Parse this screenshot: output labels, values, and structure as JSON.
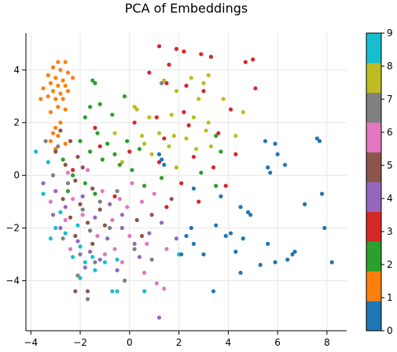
{
  "chart_data": {
    "type": "scatter",
    "title": "PCA of Embeddings",
    "xlabel": "",
    "ylabel": "",
    "xlim": [
      -4.2,
      8.8
    ],
    "ylim": [
      -5.9,
      5.4
    ],
    "x_ticks": [
      -4,
      -2,
      0,
      2,
      4,
      6,
      8
    ],
    "y_ticks": [
      -4,
      -2,
      0,
      2,
      4
    ],
    "grid": true,
    "colorbar": {
      "cmap": "tab10",
      "range": [
        0,
        9
      ],
      "ticks": [
        0,
        1,
        2,
        3,
        4,
        5,
        6,
        7,
        8,
        9
      ],
      "colors": [
        "#1f77b4",
        "#ff7f0e",
        "#2ca02c",
        "#d62728",
        "#9467bd",
        "#8c564b",
        "#e377c2",
        "#7f7f7f",
        "#bcbd22",
        "#17becf"
      ]
    },
    "points": [
      {
        "x": -2.9,
        "y": 4.3,
        "c": 1
      },
      {
        "x": -2.6,
        "y": 4.3,
        "c": 1
      },
      {
        "x": -3.1,
        "y": 4.1,
        "c": 1
      },
      {
        "x": -2.8,
        "y": 4.0,
        "c": 1
      },
      {
        "x": -3.3,
        "y": 3.8,
        "c": 1
      },
      {
        "x": -2.5,
        "y": 3.9,
        "c": 1
      },
      {
        "x": -3.0,
        "y": 3.7,
        "c": 1
      },
      {
        "x": -2.7,
        "y": 3.6,
        "c": 1
      },
      {
        "x": -2.3,
        "y": 3.7,
        "c": 1
      },
      {
        "x": -3.2,
        "y": 3.5,
        "c": 1
      },
      {
        "x": -2.9,
        "y": 3.4,
        "c": 1
      },
      {
        "x": -2.6,
        "y": 3.4,
        "c": 1
      },
      {
        "x": -3.5,
        "y": 3.3,
        "c": 1
      },
      {
        "x": -3.1,
        "y": 3.2,
        "c": 1
      },
      {
        "x": -2.8,
        "y": 3.1,
        "c": 1
      },
      {
        "x": -2.5,
        "y": 3.2,
        "c": 1
      },
      {
        "x": -3.3,
        "y": 3.0,
        "c": 1
      },
      {
        "x": -3.0,
        "y": 2.9,
        "c": 1
      },
      {
        "x": -2.7,
        "y": 2.9,
        "c": 1
      },
      {
        "x": -3.6,
        "y": 2.9,
        "c": 1
      },
      {
        "x": -2.9,
        "y": 2.6,
        "c": 1
      },
      {
        "x": -2.6,
        "y": 2.5,
        "c": 1
      },
      {
        "x": -3.2,
        "y": 2.4,
        "c": 1
      },
      {
        "x": -2.8,
        "y": 2.0,
        "c": 1
      },
      {
        "x": -3.0,
        "y": 1.8,
        "c": 1
      },
      {
        "x": -3.1,
        "y": 1.6,
        "c": 1
      },
      {
        "x": -2.9,
        "y": 1.5,
        "c": 1
      },
      {
        "x": -2.6,
        "y": 1.2,
        "c": 1
      },
      {
        "x": -3.2,
        "y": 1.3,
        "c": 1
      },
      {
        "x": -3.0,
        "y": 1.0,
        "c": 1
      },
      {
        "x": 1.2,
        "y": 4.9,
        "c": 3
      },
      {
        "x": 1.9,
        "y": 4.8,
        "c": 3
      },
      {
        "x": 2.2,
        "y": 4.7,
        "c": 3
      },
      {
        "x": 2.9,
        "y": 4.6,
        "c": 3
      },
      {
        "x": 3.3,
        "y": 4.5,
        "c": 3
      },
      {
        "x": 4.7,
        "y": 4.3,
        "c": 3
      },
      {
        "x": 5.0,
        "y": 4.4,
        "c": 3
      },
      {
        "x": 1.6,
        "y": 4.2,
        "c": 3
      },
      {
        "x": 0.8,
        "y": 3.9,
        "c": 3
      },
      {
        "x": 1.5,
        "y": 3.5,
        "c": 3
      },
      {
        "x": 2.3,
        "y": 3.4,
        "c": 3
      },
      {
        "x": 3.0,
        "y": 3.2,
        "c": 3
      },
      {
        "x": 5.1,
        "y": 3.3,
        "c": 3
      },
      {
        "x": 4.1,
        "y": 2.5,
        "c": 3
      },
      {
        "x": 2.2,
        "y": 2.4,
        "c": 3
      },
      {
        "x": 0.2,
        "y": 2.0,
        "c": 3
      },
      {
        "x": 1.1,
        "y": 2.2,
        "c": 3
      },
      {
        "x": 2.4,
        "y": 1.9,
        "c": 3
      },
      {
        "x": 3.6,
        "y": 1.6,
        "c": 3
      },
      {
        "x": 1.4,
        "y": 1.4,
        "c": 3
      },
      {
        "x": -1.4,
        "y": 1.8,
        "c": 3
      },
      {
        "x": -1.2,
        "y": 1.1,
        "c": 3
      },
      {
        "x": 0.0,
        "y": 0.9,
        "c": 3
      },
      {
        "x": 1.2,
        "y": 0.5,
        "c": 3
      },
      {
        "x": 2.6,
        "y": 0.7,
        "c": 3
      },
      {
        "x": 3.4,
        "y": 0.3,
        "c": 3
      },
      {
        "x": 4.3,
        "y": 0.8,
        "c": 3
      },
      {
        "x": -2.3,
        "y": 0.2,
        "c": 3
      },
      {
        "x": 2.1,
        "y": -0.3,
        "c": 3
      },
      {
        "x": 2.8,
        "y": -1.0,
        "c": 3
      },
      {
        "x": 1.5,
        "y": -1.2,
        "c": 3
      },
      {
        "x": -0.6,
        "y": -0.8,
        "c": 3
      },
      {
        "x": 3.9,
        "y": -0.4,
        "c": 3
      },
      {
        "x": 1.4,
        "y": 3.6,
        "c": 8
      },
      {
        "x": 2.5,
        "y": 3.7,
        "c": 8
      },
      {
        "x": 3.2,
        "y": 3.8,
        "c": 8
      },
      {
        "x": 3.0,
        "y": 3.5,
        "c": 8
      },
      {
        "x": 1.9,
        "y": 3.2,
        "c": 8
      },
      {
        "x": 2.8,
        "y": 2.9,
        "c": 8
      },
      {
        "x": 3.8,
        "y": 2.9,
        "c": 8
      },
      {
        "x": 0.2,
        "y": 2.6,
        "c": 8
      },
      {
        "x": 0.3,
        "y": 2.5,
        "c": 8
      },
      {
        "x": 0.8,
        "y": 2.2,
        "c": 8
      },
      {
        "x": 1.7,
        "y": 2.3,
        "c": 8
      },
      {
        "x": 2.6,
        "y": 2.2,
        "c": 8
      },
      {
        "x": 3.2,
        "y": 2.0,
        "c": 8
      },
      {
        "x": 4.6,
        "y": 2.4,
        "c": 8
      },
      {
        "x": -0.6,
        "y": 1.6,
        "c": 8
      },
      {
        "x": 0.5,
        "y": 1.5,
        "c": 8
      },
      {
        "x": 1.2,
        "y": 1.6,
        "c": 8
      },
      {
        "x": 1.8,
        "y": 1.5,
        "c": 8
      },
      {
        "x": 2.3,
        "y": 1.4,
        "c": 8
      },
      {
        "x": 3.1,
        "y": 1.7,
        "c": 8
      },
      {
        "x": 4.3,
        "y": 1.5,
        "c": 8
      },
      {
        "x": 0.6,
        "y": 1.2,
        "c": 8
      },
      {
        "x": 1.6,
        "y": 1.1,
        "c": 8
      },
      {
        "x": 2.7,
        "y": 1.0,
        "c": 8
      },
      {
        "x": 3.3,
        "y": 1.1,
        "c": 8
      },
      {
        "x": 0.9,
        "y": 0.8,
        "c": 8
      },
      {
        "x": -0.3,
        "y": 0.5,
        "c": 8
      },
      {
        "x": 1.9,
        "y": 0.3,
        "c": 8
      },
      {
        "x": -1.5,
        "y": 3.6,
        "c": 2
      },
      {
        "x": -1.4,
        "y": 3.5,
        "c": 2
      },
      {
        "x": -0.2,
        "y": 3.0,
        "c": 2
      },
      {
        "x": -1.6,
        "y": 2.6,
        "c": 2
      },
      {
        "x": -1.2,
        "y": 2.7,
        "c": 2
      },
      {
        "x": -1.8,
        "y": 2.2,
        "c": 2
      },
      {
        "x": -0.7,
        "y": 2.3,
        "c": 2
      },
      {
        "x": -1.3,
        "y": 1.6,
        "c": 2
      },
      {
        "x": -2.0,
        "y": 1.3,
        "c": 2
      },
      {
        "x": -0.9,
        "y": 1.2,
        "c": 2
      },
      {
        "x": -0.1,
        "y": 1.3,
        "c": 2
      },
      {
        "x": 0.4,
        "y": 1.0,
        "c": 2
      },
      {
        "x": -1.6,
        "y": 0.9,
        "c": 2
      },
      {
        "x": -0.6,
        "y": 0.8,
        "c": 2
      },
      {
        "x": -2.7,
        "y": 0.6,
        "c": 2
      },
      {
        "x": -1.1,
        "y": 0.6,
        "c": 2
      },
      {
        "x": -0.4,
        "y": 0.4,
        "c": 2
      },
      {
        "x": 0.1,
        "y": 0.2,
        "c": 2
      },
      {
        "x": -2.3,
        "y": 0.0,
        "c": 2
      },
      {
        "x": -1.8,
        "y": -0.3,
        "c": 2
      },
      {
        "x": -2.5,
        "y": -0.6,
        "c": 2
      },
      {
        "x": -1.4,
        "y": -0.7,
        "c": 2
      },
      {
        "x": 0.6,
        "y": -0.4,
        "c": 2
      },
      {
        "x": 1.3,
        "y": -0.1,
        "c": 2
      },
      {
        "x": 3.5,
        "y": 1.5,
        "c": 2
      },
      {
        "x": 3.7,
        "y": 0.9,
        "c": 2
      },
      {
        "x": 2.9,
        "y": 0.1,
        "c": 2
      },
      {
        "x": 3.5,
        "y": -0.4,
        "c": 2
      },
      {
        "x": -2.8,
        "y": 1.7,
        "c": 5
      },
      {
        "x": -2.4,
        "y": 1.3,
        "c": 5
      },
      {
        "x": -3.0,
        "y": 0.9,
        "c": 5
      },
      {
        "x": -2.1,
        "y": 0.7,
        "c": 5
      },
      {
        "x": -2.6,
        "y": 0.4,
        "c": 5
      },
      {
        "x": -1.9,
        "y": 0.3,
        "c": 5
      },
      {
        "x": -2.2,
        "y": -0.2,
        "c": 5
      },
      {
        "x": -1.5,
        "y": -0.5,
        "c": 5
      },
      {
        "x": -2.7,
        "y": -0.9,
        "c": 5
      },
      {
        "x": -2.0,
        "y": -1.1,
        "c": 5
      },
      {
        "x": -1.2,
        "y": -1.3,
        "c": 5
      },
      {
        "x": -2.4,
        "y": -1.6,
        "c": 5
      },
      {
        "x": -1.7,
        "y": -1.8,
        "c": 5
      },
      {
        "x": -1.0,
        "y": -1.9,
        "c": 5
      },
      {
        "x": -2.2,
        "y": -2.3,
        "c": 5
      },
      {
        "x": -1.5,
        "y": -2.6,
        "c": 5
      },
      {
        "x": 0.3,
        "y": -1.7,
        "c": 5
      },
      {
        "x": 0.9,
        "y": -1.5,
        "c": 5
      },
      {
        "x": 1.7,
        "y": -0.9,
        "c": 5
      },
      {
        "x": 0.5,
        "y": -2.3,
        "c": 5
      },
      {
        "x": -2.2,
        "y": -4.4,
        "c": 5
      },
      {
        "x": -1.7,
        "y": -4.4,
        "c": 5
      },
      {
        "x": -3.5,
        "y": -0.3,
        "c": 4
      },
      {
        "x": -3.0,
        "y": -0.6,
        "c": 4
      },
      {
        "x": -2.6,
        "y": -1.2,
        "c": 4
      },
      {
        "x": -3.1,
        "y": -1.5,
        "c": 4
      },
      {
        "x": -1.9,
        "y": -0.8,
        "c": 4
      },
      {
        "x": -1.4,
        "y": -1.6,
        "c": 4
      },
      {
        "x": -0.8,
        "y": -1.1,
        "c": 4
      },
      {
        "x": -0.3,
        "y": -1.5,
        "c": 4
      },
      {
        "x": -2.8,
        "y": -2.0,
        "c": 4
      },
      {
        "x": -2.1,
        "y": -2.5,
        "c": 4
      },
      {
        "x": -1.6,
        "y": -2.9,
        "c": 4
      },
      {
        "x": -0.9,
        "y": -2.4,
        "c": 4
      },
      {
        "x": -0.3,
        "y": -2.0,
        "c": 4
      },
      {
        "x": 0.2,
        "y": -2.6,
        "c": 4
      },
      {
        "x": 0.8,
        "y": -2.2,
        "c": 4
      },
      {
        "x": 1.3,
        "y": -1.8,
        "c": 4
      },
      {
        "x": 1.9,
        "y": -2.4,
        "c": 4
      },
      {
        "x": -1.8,
        "y": -3.5,
        "c": 4
      },
      {
        "x": -1.2,
        "y": -3.2,
        "c": 4
      },
      {
        "x": -0.5,
        "y": -3.6,
        "c": 4
      },
      {
        "x": 0.4,
        "y": -3.1,
        "c": 4
      },
      {
        "x": 1.2,
        "y": -5.4,
        "c": 4
      },
      {
        "x": -2.5,
        "y": 0.1,
        "c": 6
      },
      {
        "x": -1.7,
        "y": 0.2,
        "c": 6
      },
      {
        "x": -3.2,
        "y": -1.0,
        "c": 6
      },
      {
        "x": -2.3,
        "y": -0.9,
        "c": 6
      },
      {
        "x": -1.1,
        "y": -0.6,
        "c": 6
      },
      {
        "x": -0.4,
        "y": -0.9,
        "c": 6
      },
      {
        "x": 0.1,
        "y": -0.3,
        "c": 6
      },
      {
        "x": -2.6,
        "y": -1.7,
        "c": 6
      },
      {
        "x": -1.9,
        "y": -1.5,
        "c": 6
      },
      {
        "x": -0.7,
        "y": -1.7,
        "c": 6
      },
      {
        "x": -0.1,
        "y": -1.2,
        "c": 6
      },
      {
        "x": 0.5,
        "y": -1.0,
        "c": 6
      },
      {
        "x": 1.0,
        "y": -0.7,
        "c": 6
      },
      {
        "x": -2.4,
        "y": -2.8,
        "c": 6
      },
      {
        "x": -1.3,
        "y": -2.3,
        "c": 6
      },
      {
        "x": -0.6,
        "y": -2.8,
        "c": 6
      },
      {
        "x": 0.0,
        "y": -2.3,
        "c": 6
      },
      {
        "x": 0.7,
        "y": -2.6,
        "c": 6
      },
      {
        "x": 1.5,
        "y": -2.8,
        "c": 6
      },
      {
        "x": -1.0,
        "y": -3.0,
        "c": 6
      },
      {
        "x": -0.3,
        "y": -3.3,
        "c": 6
      },
      {
        "x": 0.6,
        "y": -3.7,
        "c": 6
      },
      {
        "x": 1.1,
        "y": -4.1,
        "c": 6
      },
      {
        "x": 1.4,
        "y": -4.3,
        "c": 6
      },
      {
        "x": -3.4,
        "y": 1.3,
        "c": 7
      },
      {
        "x": -2.9,
        "y": 1.1,
        "c": 7
      },
      {
        "x": -3.1,
        "y": 0.0,
        "c": 7
      },
      {
        "x": -2.5,
        "y": -0.3,
        "c": 7
      },
      {
        "x": -1.9,
        "y": -1.3,
        "c": 7
      },
      {
        "x": -1.2,
        "y": -1.0,
        "c": 7
      },
      {
        "x": -0.5,
        "y": -0.6,
        "c": 7
      },
      {
        "x": -2.7,
        "y": -2.4,
        "c": 7
      },
      {
        "x": -1.6,
        "y": -2.1,
        "c": 7
      },
      {
        "x": -0.8,
        "y": -2.0,
        "c": 7
      },
      {
        "x": -2.0,
        "y": -3.0,
        "c": 7
      },
      {
        "x": -1.4,
        "y": -3.3,
        "c": 7
      },
      {
        "x": -2.1,
        "y": -3.8,
        "c": 7
      },
      {
        "x": -0.2,
        "y": -4.0,
        "c": 7
      },
      {
        "x": 0.9,
        "y": -3.2,
        "c": 7
      },
      {
        "x": -1.7,
        "y": -4.7,
        "c": 7
      },
      {
        "x": 1.3,
        "y": 3.5,
        "c": 7
      },
      {
        "x": 0.2,
        "y": -2.8,
        "c": 7
      },
      {
        "x": -3.8,
        "y": 0.9,
        "c": 9
      },
      {
        "x": -3.3,
        "y": 0.5,
        "c": 9
      },
      {
        "x": -3.5,
        "y": -0.7,
        "c": 9
      },
      {
        "x": -2.8,
        "y": -1.4,
        "c": 9
      },
      {
        "x": -3.0,
        "y": -2.0,
        "c": 9
      },
      {
        "x": -2.1,
        "y": -1.9,
        "c": 9
      },
      {
        "x": -3.2,
        "y": -2.4,
        "c": 9
      },
      {
        "x": -2.6,
        "y": -2.2,
        "c": 9
      },
      {
        "x": -2.0,
        "y": -2.7,
        "c": 9
      },
      {
        "x": -1.5,
        "y": -3.1,
        "c": 9
      },
      {
        "x": -2.3,
        "y": -3.1,
        "c": 9
      },
      {
        "x": -1.8,
        "y": -3.3,
        "c": 9
      },
      {
        "x": -2.0,
        "y": -3.9,
        "c": 9
      },
      {
        "x": -1.4,
        "y": -3.6,
        "c": 9
      },
      {
        "x": -1.0,
        "y": -3.3,
        "c": 9
      },
      {
        "x": -0.5,
        "y": -3.2,
        "c": 9
      },
      {
        "x": -0.7,
        "y": -4.4,
        "c": 9
      },
      {
        "x": -0.5,
        "y": -4.4,
        "c": 9
      },
      {
        "x": 0.6,
        "y": -4.4,
        "c": 9
      },
      {
        "x": 2.0,
        "y": -3.0,
        "c": 9
      },
      {
        "x": 1.2,
        "y": 0.8,
        "c": 0
      },
      {
        "x": 1.3,
        "y": 0.6,
        "c": 0
      },
      {
        "x": 1.4,
        "y": 0.4,
        "c": 0
      },
      {
        "x": 5.5,
        "y": 1.3,
        "c": 0
      },
      {
        "x": 5.9,
        "y": 1.2,
        "c": 0
      },
      {
        "x": 7.6,
        "y": 1.4,
        "c": 0
      },
      {
        "x": 7.7,
        "y": 1.3,
        "c": 0
      },
      {
        "x": 6.0,
        "y": 0.8,
        "c": 0
      },
      {
        "x": 6.3,
        "y": 0.4,
        "c": 0
      },
      {
        "x": 5.6,
        "y": 0.3,
        "c": 0
      },
      {
        "x": 5.7,
        "y": 0.1,
        "c": 0
      },
      {
        "x": 2.6,
        "y": -0.5,
        "c": 0
      },
      {
        "x": 3.7,
        "y": -0.8,
        "c": 0
      },
      {
        "x": 7.8,
        "y": -0.7,
        "c": 0
      },
      {
        "x": 4.5,
        "y": -1.2,
        "c": 0
      },
      {
        "x": 4.8,
        "y": -1.4,
        "c": 0
      },
      {
        "x": 4.9,
        "y": -1.5,
        "c": 0
      },
      {
        "x": 7.1,
        "y": -1.1,
        "c": 0
      },
      {
        "x": 2.5,
        "y": -2.0,
        "c": 0
      },
      {
        "x": 3.5,
        "y": -1.9,
        "c": 0
      },
      {
        "x": 7.9,
        "y": -2.0,
        "c": 0
      },
      {
        "x": 2.3,
        "y": -2.3,
        "c": 0
      },
      {
        "x": 3.9,
        "y": -2.3,
        "c": 0
      },
      {
        "x": 4.1,
        "y": -2.2,
        "c": 0
      },
      {
        "x": 2.6,
        "y": -2.6,
        "c": 0
      },
      {
        "x": 4.6,
        "y": -2.4,
        "c": 0
      },
      {
        "x": 5.6,
        "y": -2.6,
        "c": 0
      },
      {
        "x": 2.1,
        "y": -3.0,
        "c": 0
      },
      {
        "x": 3.0,
        "y": -3.0,
        "c": 0
      },
      {
        "x": 4.3,
        "y": -2.9,
        "c": 0
      },
      {
        "x": 6.7,
        "y": -2.9,
        "c": 0
      },
      {
        "x": 6.6,
        "y": -3.0,
        "c": 0
      },
      {
        "x": 5.3,
        "y": -3.4,
        "c": 0
      },
      {
        "x": 5.9,
        "y": -3.3,
        "c": 0
      },
      {
        "x": 6.4,
        "y": -3.2,
        "c": 0
      },
      {
        "x": 8.2,
        "y": -3.3,
        "c": 0
      },
      {
        "x": 4.5,
        "y": -3.7,
        "c": 0
      },
      {
        "x": 3.4,
        "y": -4.4,
        "c": 0
      }
    ]
  }
}
